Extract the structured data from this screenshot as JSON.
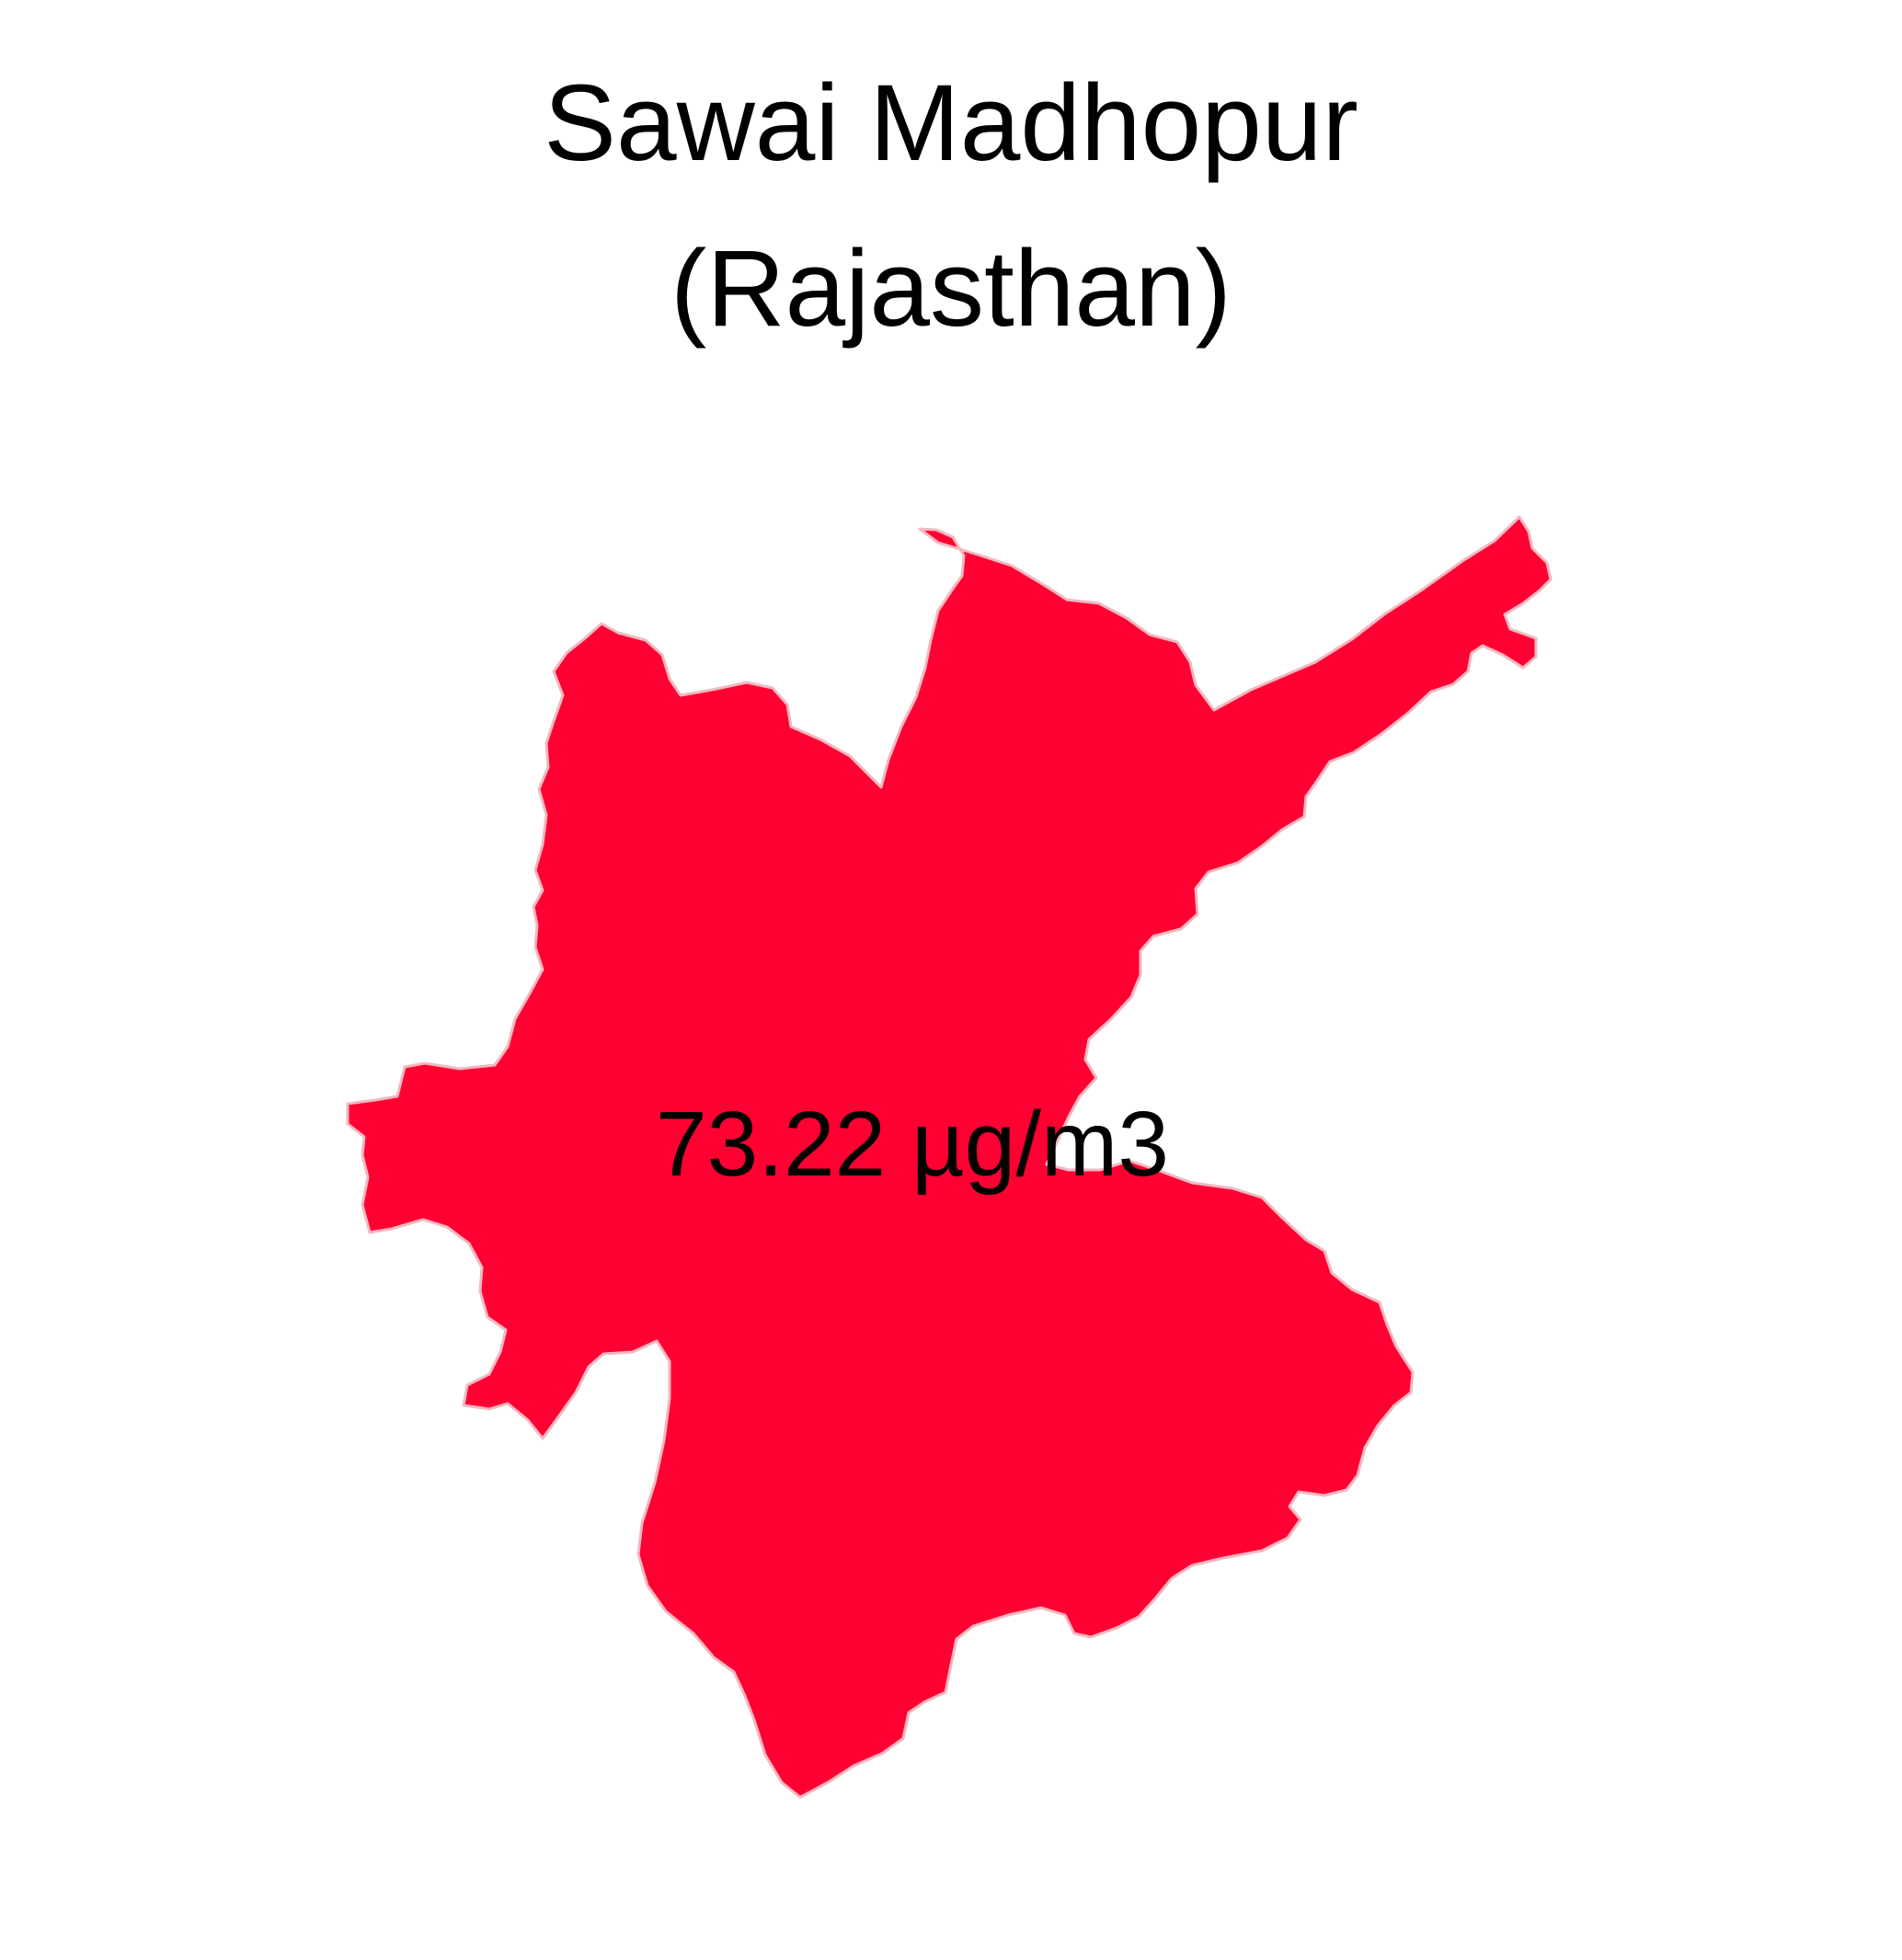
{
  "title": {
    "line1": "Sawai Madhopur",
    "line2": "(Rajasthan)"
  },
  "region": {
    "name": "Sawai Madhopur",
    "state": "Rajasthan",
    "fill_color": "#ff0033"
  },
  "value_label": "73.22 µg/m3"
}
